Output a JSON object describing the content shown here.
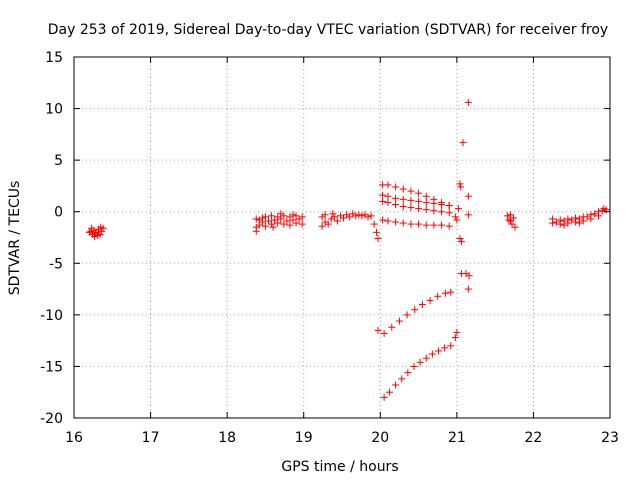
{
  "chart_data": {
    "type": "scatter",
    "title": "Day 253 of 2019, Sidereal Day-to-day VTEC variation (SDTVAR) for receiver froy",
    "xlabel": "GPS time / hours",
    "ylabel": "SDTVAR / TECUs",
    "xlim": [
      16,
      23
    ],
    "ylim": [
      -20,
      15
    ],
    "xticks": [
      "16",
      "17",
      "18",
      "19",
      "20",
      "21",
      "22",
      "23"
    ],
    "yticks": [
      "-20",
      "-15",
      "-10",
      "-5",
      "0",
      "5",
      "10",
      "15"
    ],
    "grid": true,
    "marker": "plus",
    "color": "#ff0000",
    "series": [
      {
        "name": "SDTVAR",
        "points": [
          [
            16.2,
            -2.0
          ],
          [
            16.22,
            -1.9
          ],
          [
            16.24,
            -2.2
          ],
          [
            16.26,
            -1.8
          ],
          [
            16.28,
            -2.1
          ],
          [
            16.3,
            -2.0
          ],
          [
            16.32,
            -1.7
          ],
          [
            16.34,
            -2.2
          ],
          [
            16.36,
            -1.9
          ],
          [
            16.38,
            -1.6
          ],
          [
            16.23,
            -1.6
          ],
          [
            16.27,
            -2.4
          ],
          [
            16.31,
            -2.3
          ],
          [
            16.35,
            -1.5
          ],
          [
            18.38,
            -0.7
          ],
          [
            18.38,
            -1.5
          ],
          [
            18.38,
            -1.9
          ],
          [
            18.42,
            -1.3
          ],
          [
            18.42,
            -0.8
          ],
          [
            18.46,
            -1.0
          ],
          [
            18.46,
            -0.6
          ],
          [
            18.5,
            -1.4
          ],
          [
            18.5,
            -0.5
          ],
          [
            18.54,
            -0.9
          ],
          [
            18.58,
            -1.2
          ],
          [
            18.58,
            -0.4
          ],
          [
            18.62,
            -0.8
          ],
          [
            18.66,
            -1.1
          ],
          [
            18.66,
            -0.5
          ],
          [
            18.7,
            -0.7
          ],
          [
            18.74,
            -1.2
          ],
          [
            18.74,
            -0.4
          ],
          [
            18.78,
            -0.9
          ],
          [
            18.82,
            -1.3
          ],
          [
            18.82,
            -0.5
          ],
          [
            18.86,
            -0.8
          ],
          [
            18.9,
            -1.1
          ],
          [
            18.9,
            -0.4
          ],
          [
            18.94,
            -0.7
          ],
          [
            18.98,
            -1.2
          ],
          [
            18.98,
            -0.5
          ],
          [
            18.6,
            -1.5
          ],
          [
            18.7,
            -0.2
          ],
          [
            18.86,
            -0.3
          ],
          [
            19.24,
            -1.4
          ],
          [
            19.24,
            -0.5
          ],
          [
            19.28,
            -1.0
          ],
          [
            19.28,
            -0.3
          ],
          [
            19.32,
            -1.2
          ],
          [
            19.36,
            -0.7
          ],
          [
            19.4,
            -0.5
          ],
          [
            19.44,
            -0.9
          ],
          [
            19.48,
            -0.4
          ],
          [
            19.52,
            -0.6
          ],
          [
            19.56,
            -0.3
          ],
          [
            19.6,
            -0.5
          ],
          [
            19.64,
            -0.2
          ],
          [
            19.68,
            -0.4
          ],
          [
            19.72,
            -0.3
          ],
          [
            19.76,
            -0.4
          ],
          [
            19.8,
            -0.3
          ],
          [
            19.84,
            -0.5
          ],
          [
            19.88,
            -0.4
          ],
          [
            19.38,
            -0.2
          ],
          [
            19.92,
            -1.2
          ],
          [
            19.95,
            -2.0
          ],
          [
            19.97,
            -2.6
          ],
          [
            20.03,
            2.6
          ],
          [
            20.1,
            2.6
          ],
          [
            20.2,
            2.4
          ],
          [
            20.3,
            2.2
          ],
          [
            20.4,
            2.0
          ],
          [
            20.5,
            1.8
          ],
          [
            20.6,
            1.5
          ],
          [
            20.7,
            1.2
          ],
          [
            20.8,
            0.9
          ],
          [
            20.9,
            0.6
          ],
          [
            20.03,
            1.6
          ],
          [
            20.1,
            1.5
          ],
          [
            20.2,
            1.3
          ],
          [
            20.3,
            1.2
          ],
          [
            20.4,
            1.1
          ],
          [
            20.5,
            1.0
          ],
          [
            20.6,
            0.9
          ],
          [
            20.7,
            0.8
          ],
          [
            20.8,
            0.7
          ],
          [
            20.9,
            0.6
          ],
          [
            20.03,
            1.0
          ],
          [
            20.1,
            0.9
          ],
          [
            20.2,
            0.7
          ],
          [
            20.3,
            0.5
          ],
          [
            20.4,
            0.4
          ],
          [
            20.5,
            0.3
          ],
          [
            20.6,
            0.2
          ],
          [
            20.7,
            0.1
          ],
          [
            20.8,
            0.0
          ],
          [
            20.9,
            -0.1
          ],
          [
            20.03,
            -0.8
          ],
          [
            20.1,
            -0.9
          ],
          [
            20.2,
            -1.0
          ],
          [
            20.3,
            -1.1
          ],
          [
            20.4,
            -1.2
          ],
          [
            20.5,
            -1.2
          ],
          [
            20.6,
            -1.3
          ],
          [
            20.7,
            -1.3
          ],
          [
            20.8,
            -1.3
          ],
          [
            20.9,
            -1.4
          ],
          [
            19.97,
            -11.5
          ],
          [
            20.05,
            -11.8
          ],
          [
            20.15,
            -11.2
          ],
          [
            20.25,
            -10.6
          ],
          [
            20.35,
            -10.0
          ],
          [
            20.45,
            -9.5
          ],
          [
            20.55,
            -9.0
          ],
          [
            20.65,
            -8.6
          ],
          [
            20.75,
            -8.2
          ],
          [
            20.85,
            -7.9
          ],
          [
            20.92,
            -7.8
          ],
          [
            20.05,
            -18.0
          ],
          [
            20.12,
            -17.5
          ],
          [
            20.2,
            -16.8
          ],
          [
            20.28,
            -16.2
          ],
          [
            20.36,
            -15.6
          ],
          [
            20.44,
            -15.0
          ],
          [
            20.52,
            -14.6
          ],
          [
            20.6,
            -14.2
          ],
          [
            20.68,
            -13.8
          ],
          [
            20.76,
            -13.5
          ],
          [
            20.84,
            -13.2
          ],
          [
            20.92,
            -13.0
          ],
          [
            20.98,
            -12.2
          ],
          [
            21.0,
            -11.7
          ],
          [
            20.98,
            -0.5
          ],
          [
            21.0,
            -0.8
          ],
          [
            21.02,
            0.3
          ],
          [
            21.04,
            -2.6
          ],
          [
            21.06,
            -2.9
          ],
          [
            21.04,
            2.7
          ],
          [
            21.05,
            2.4
          ],
          [
            21.08,
            6.7
          ],
          [
            21.15,
            10.6
          ],
          [
            21.06,
            -6.0
          ],
          [
            21.12,
            -6.0
          ],
          [
            21.16,
            -6.2
          ],
          [
            21.15,
            -7.5
          ],
          [
            21.15,
            1.5
          ],
          [
            21.15,
            -0.3
          ],
          [
            21.66,
            -0.4
          ],
          [
            21.68,
            -0.8
          ],
          [
            21.7,
            -0.3
          ],
          [
            21.72,
            -1.2
          ],
          [
            21.74,
            -0.6
          ],
          [
            21.76,
            -1.5
          ],
          [
            21.7,
            -0.9
          ],
          [
            22.25,
            -1.1
          ],
          [
            22.25,
            -0.7
          ],
          [
            22.3,
            -1.0
          ],
          [
            22.35,
            -0.8
          ],
          [
            22.35,
            -1.2
          ],
          [
            22.4,
            -0.9
          ],
          [
            22.45,
            -0.7
          ],
          [
            22.45,
            -1.1
          ],
          [
            22.5,
            -0.8
          ],
          [
            22.55,
            -0.6
          ],
          [
            22.55,
            -1.0
          ],
          [
            22.6,
            -0.7
          ],
          [
            22.65,
            -0.5
          ],
          [
            22.65,
            -0.9
          ],
          [
            22.7,
            -0.5
          ],
          [
            22.75,
            -0.3
          ],
          [
            22.75,
            -0.7
          ],
          [
            22.8,
            -0.2
          ],
          [
            22.85,
            0.0
          ],
          [
            22.85,
            -0.4
          ],
          [
            22.9,
            0.1
          ],
          [
            22.92,
            0.3
          ],
          [
            22.95,
            0.2
          ],
          [
            22.4,
            -1.3
          ],
          [
            22.6,
            -1.1
          ]
        ]
      }
    ]
  }
}
